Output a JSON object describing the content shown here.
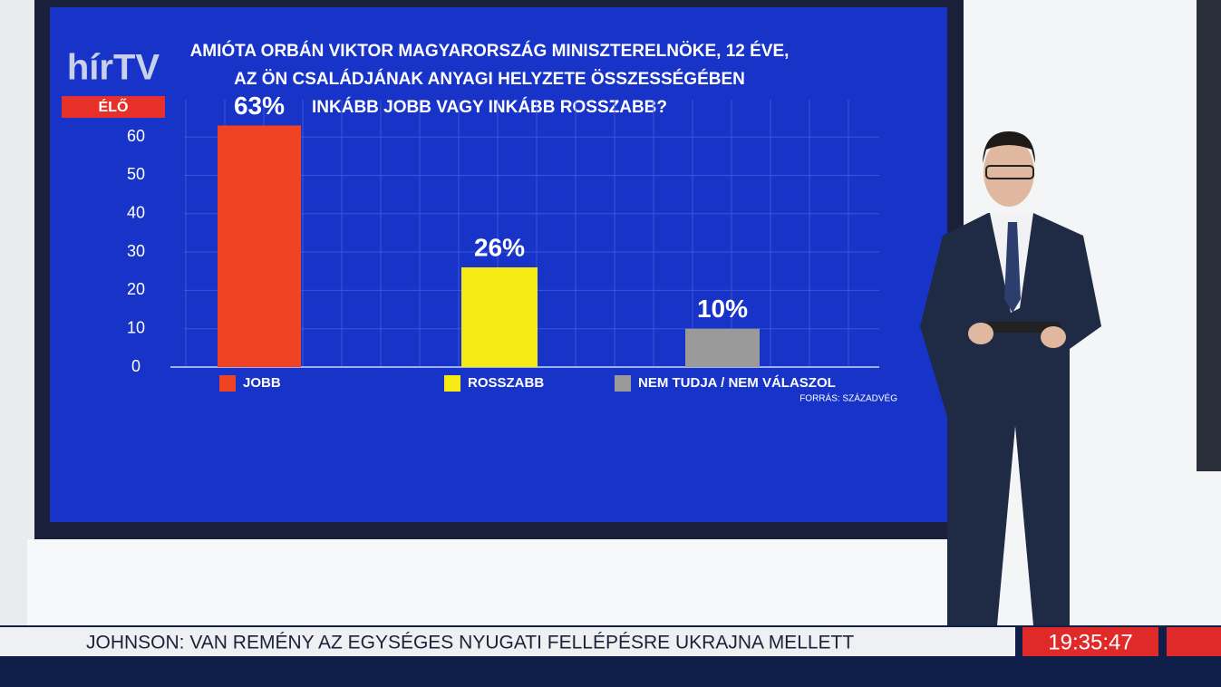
{
  "chart_data": {
    "type": "bar",
    "title": [
      "AMIÓTA ORBÁN VIKTOR MAGYARORSZÁG MINISZTERELNÖKE, 12 ÉVE,",
      "AZ ÖN CSALÁDJÁNAK ANYAGI HELYZETE ÖSSZESSÉGÉBEN",
      "INKÁBB JOBB VAGY INKÁBB ROSSZABB?"
    ],
    "categories": [
      "JOBB",
      "ROSSZABB",
      "NEM TUDJA / NEM VÁLASZOL"
    ],
    "values": [
      63,
      26,
      10
    ],
    "value_labels": [
      "63%",
      "26%",
      "10%"
    ],
    "colors": [
      "#f04323",
      "#f5ea14",
      "#9a9a9a"
    ],
    "ylim": [
      0,
      65
    ],
    "yticks": [
      0,
      10,
      20,
      30,
      40,
      50,
      60
    ],
    "grid": true,
    "source": "FORRÁS: SZÁZADVÉG"
  },
  "broadcast": {
    "logo": "hírTV",
    "live": "ÉLŐ",
    "ticker": "JOHNSON: VAN REMÉNY AZ EGYSÉGES NYUGATI FELLÉPÉSRE UKRAJNA MELLETT",
    "clock": "19:35:47"
  }
}
